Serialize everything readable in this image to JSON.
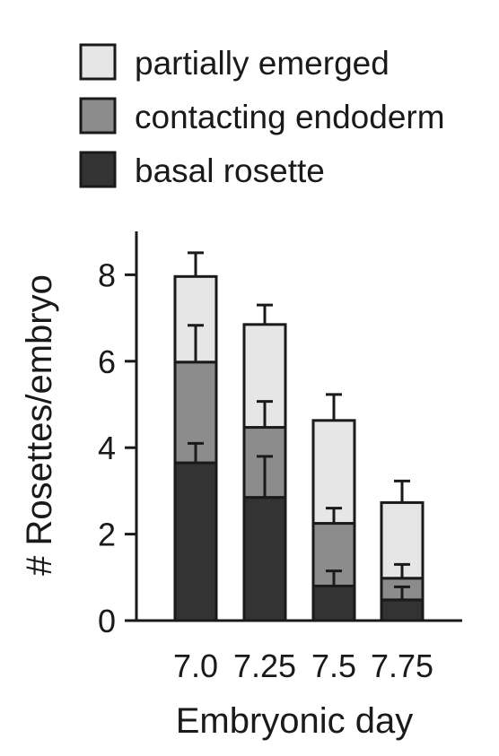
{
  "chart_data": {
    "type": "bar",
    "stacked": true,
    "xlabel": "Embryonic day",
    "ylabel": "# Rosettes/embryo",
    "ylim": [
      0,
      9
    ],
    "yticks": [
      "0",
      "2",
      "4",
      "6",
      "8"
    ],
    "categories": [
      "7.0",
      "7.25",
      "7.5",
      "7.75"
    ],
    "legend_position": "top",
    "series": [
      {
        "name": "basal rosette",
        "color": "#333333",
        "values": [
          3.65,
          2.85,
          0.8,
          0.48
        ],
        "error": [
          0.45,
          0.95,
          0.35,
          0.3
        ]
      },
      {
        "name": "contacting endoderm",
        "color": "#8c8c8c",
        "values": [
          2.33,
          1.62,
          1.45,
          0.5
        ],
        "error": [
          0.85,
          0.6,
          0.35,
          0.32
        ]
      },
      {
        "name": "partially emerged",
        "color": "#e6e6e6",
        "values": [
          1.98,
          2.38,
          2.38,
          1.75
        ],
        "error": [
          0.55,
          0.45,
          0.6,
          0.5
        ]
      }
    ]
  }
}
